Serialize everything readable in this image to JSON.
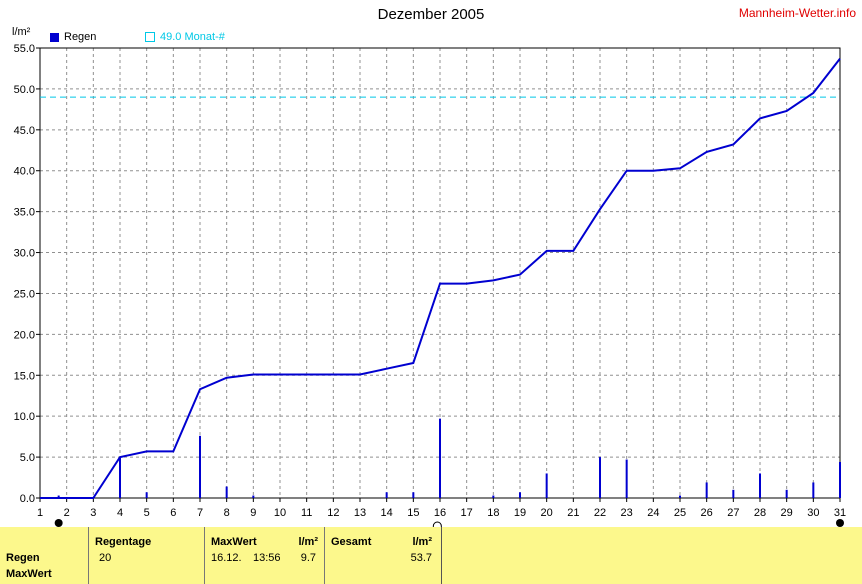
{
  "header": {
    "title": "Dezember 2005",
    "brand": "Mannheim-Wetter.info",
    "y_unit": "l/m²"
  },
  "legend": {
    "rain_label": "Regen",
    "avg_label": "49.0 Monat-#"
  },
  "colors": {
    "rain": "#0000d0",
    "average_line": "#00c8e6",
    "grid": "#909090",
    "footer_bg": "#fcf88c",
    "brand": "#e00000"
  },
  "footer": {
    "row_labels": [
      "Regen",
      "MaxWert"
    ],
    "regentage_label": "Regentage",
    "regentage_value": "20",
    "maxwert_label": "MaxWert",
    "maxwert_unit": "l/m²",
    "maxwert_date": "16.12.",
    "maxwert_time": "13:56",
    "maxwert_value": "9.7",
    "gesamt_label": "Gesamt",
    "gesamt_unit": "l/m²",
    "gesamt_value": "53.7"
  },
  "chart_data": {
    "type": "bar+line",
    "title": "Dezember 2005",
    "ylabel": "l/m²",
    "ylim": [
      0,
      55
    ],
    "yticks": [
      "0.0",
      "5.0",
      "10.0",
      "15.0",
      "20.0",
      "25.0",
      "30.0",
      "35.0",
      "40.0",
      "45.0",
      "50.0",
      "55.0"
    ],
    "x": [
      1,
      2,
      3,
      4,
      5,
      6,
      7,
      8,
      9,
      10,
      11,
      12,
      13,
      14,
      15,
      16,
      17,
      18,
      19,
      20,
      21,
      22,
      23,
      24,
      25,
      26,
      27,
      28,
      29,
      30,
      31
    ],
    "xlim": [
      1,
      31
    ],
    "grid": true,
    "series": [
      {
        "name": "Regen",
        "kind": "bar",
        "points": [
          [
            1.7,
            0.3
          ],
          [
            4,
            5.0
          ],
          [
            5,
            0.7
          ],
          [
            7,
            7.6
          ],
          [
            8,
            1.4
          ],
          [
            9,
            0.3
          ],
          [
            14,
            0.7
          ],
          [
            15,
            0.7
          ],
          [
            16,
            9.7
          ],
          [
            18,
            0.3
          ],
          [
            19,
            0.7
          ],
          [
            20,
            3.0
          ],
          [
            22,
            5.0
          ],
          [
            23,
            4.7
          ],
          [
            25,
            0.3
          ],
          [
            26,
            1.9
          ],
          [
            27,
            1.0
          ],
          [
            28,
            3.0
          ],
          [
            29,
            1.0
          ],
          [
            30,
            1.9
          ],
          [
            31,
            4.4
          ]
        ]
      },
      {
        "kind": "line",
        "points": [
          [
            1,
            0
          ],
          [
            3,
            0
          ],
          [
            4,
            5.0
          ],
          [
            5,
            5.7
          ],
          [
            6,
            5.7
          ],
          [
            7,
            13.3
          ],
          [
            8,
            14.7
          ],
          [
            9,
            15.1
          ],
          [
            10,
            15.1
          ],
          [
            11,
            15.1
          ],
          [
            12,
            15.1
          ],
          [
            13,
            15.1
          ],
          [
            14,
            15.8
          ],
          [
            15,
            16.5
          ],
          [
            16,
            26.2
          ],
          [
            17,
            26.2
          ],
          [
            18,
            26.6
          ],
          [
            19,
            27.3
          ],
          [
            20,
            30.2
          ],
          [
            21,
            30.2
          ],
          [
            22,
            35.3
          ],
          [
            23,
            40.0
          ],
          [
            24,
            40.0
          ],
          [
            25,
            40.3
          ],
          [
            26,
            42.3
          ],
          [
            27,
            43.2
          ],
          [
            28,
            46.4
          ],
          [
            29,
            47.3
          ],
          [
            30,
            49.5
          ],
          [
            31,
            53.7
          ]
        ]
      },
      {
        "name": "49.0 Monat-#",
        "kind": "hline",
        "value": 49.0
      }
    ],
    "markers": [
      {
        "x": 1.7,
        "symbol": "full-moon"
      },
      {
        "x": 15.9,
        "symbol": "new-moon"
      },
      {
        "x": 31,
        "symbol": "full-moon"
      }
    ]
  }
}
